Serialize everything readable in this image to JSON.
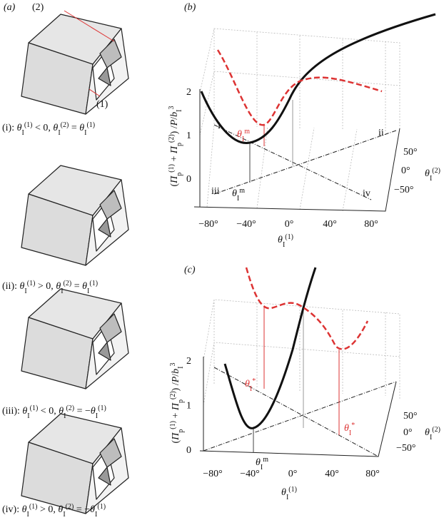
{
  "panel_a": {
    "label": "(a)",
    "callouts": [
      "(2)",
      "(1)"
    ],
    "captions": [
      [
        "(i): ",
        {
          "t": "θ",
          "sub": "I",
          "sup": "(1)"
        },
        " < 0, ",
        {
          "t": "θ",
          "sub": "I",
          "sup": "(2)"
        },
        " = ",
        {
          "t": "θ",
          "sub": "I",
          "sup": "(1)"
        }
      ],
      [
        "(ii): ",
        {
          "t": "θ",
          "sub": "I",
          "sup": "(1)"
        },
        " > 0, ",
        {
          "t": "θ",
          "sub": "I",
          "sup": "(2)"
        },
        " = ",
        {
          "t": "θ",
          "sub": "I",
          "sup": "(1)"
        }
      ],
      [
        "(iii): ",
        {
          "t": "θ",
          "sub": "I",
          "sup": "(1)"
        },
        " < 0, ",
        {
          "t": "θ",
          "sub": "I",
          "sup": "(2)"
        },
        " = −",
        {
          "t": "θ",
          "sub": "I",
          "sup": "(1)"
        }
      ],
      [
        "(iv): ",
        {
          "t": "θ",
          "sub": "I",
          "sup": "(1)"
        },
        " > 0, ",
        {
          "t": "θ",
          "sub": "I",
          "sup": "(2)"
        },
        " = −",
        {
          "t": "θ",
          "sub": "I",
          "sup": "(1)"
        }
      ]
    ]
  },
  "panel_b": {
    "label": "(b)",
    "z_label": [
      "(",
      {
        "t": "Π",
        "sub": "p",
        "sup": "(1)"
      },
      " + ",
      {
        "t": "Π",
        "sub": "p",
        "sup": "(2)"
      },
      ") /",
      {
        "t": "P",
        "sub": "",
        "sup": ""
      },
      "/",
      {
        "t": "b",
        "sub": "I",
        "sup": "3"
      }
    ],
    "z_ticks": [
      "0",
      "1",
      "2"
    ],
    "x_ticks": [
      "−80°",
      "−40°",
      "0°",
      "40°",
      "80°"
    ],
    "x_label": [
      {
        "t": "θ",
        "sub": "I",
        "sup": "(1)"
      }
    ],
    "y_ticks": [
      "50°",
      "0°",
      "−50°"
    ],
    "y_label": [
      {
        "t": "θ",
        "sub": "I",
        "sup": "(2)"
      }
    ],
    "corners": [
      "i",
      "ii",
      "iii",
      "iv"
    ],
    "annotations": [
      [
        {
          "t": "θ",
          "sub": "I",
          "sup": "m"
        }
      ],
      [
        {
          "t": "θ",
          "sub": "I",
          "sup": "m"
        }
      ]
    ]
  },
  "panel_c": {
    "label": "(c)",
    "z_label": [
      "(",
      {
        "t": "Π",
        "sub": "p",
        "sup": "(1)"
      },
      " + ",
      {
        "t": "Π",
        "sub": "p",
        "sup": "(2)"
      },
      ") /",
      {
        "t": "P",
        "sub": "",
        "sup": ""
      },
      "/",
      {
        "t": "b",
        "sub": "I",
        "sup": "3"
      }
    ],
    "z_ticks": [
      "0",
      "1",
      "2"
    ],
    "x_ticks": [
      "−80°",
      "−40°",
      "0°",
      "40°",
      "80°"
    ],
    "x_label": [
      {
        "t": "θ",
        "sub": "I",
        "sup": "(1)"
      }
    ],
    "y_ticks": [
      "50°",
      "0°",
      "−50°"
    ],
    "y_label": [
      {
        "t": "θ",
        "sub": "I",
        "sup": "(2)"
      }
    ],
    "annotations": [
      [
        {
          "t": "θ",
          "sub": "I",
          "sup": "*"
        }
      ],
      [
        {
          "t": "θ",
          "sub": "I",
          "sup": "*"
        }
      ],
      [
        {
          "t": "θ",
          "sub": "I",
          "sup": "m"
        }
      ]
    ]
  }
}
